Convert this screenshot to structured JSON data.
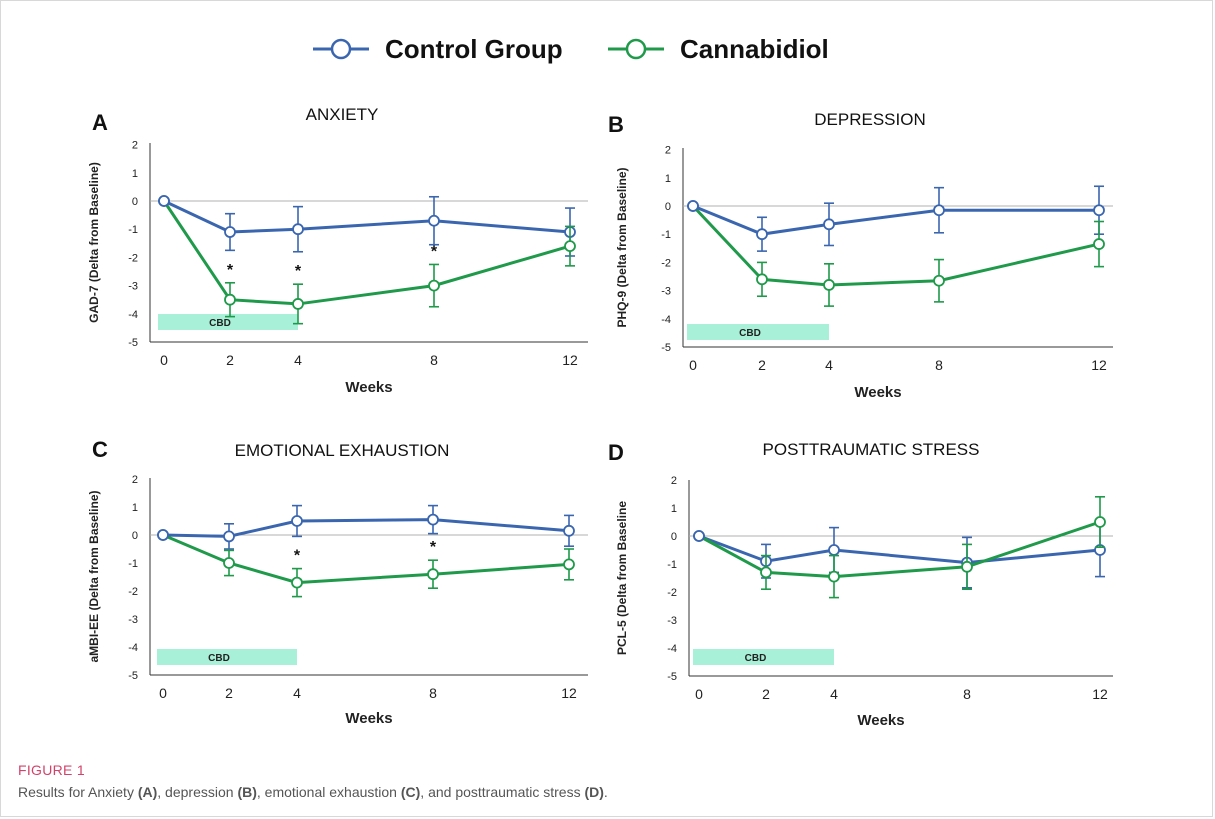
{
  "legend": {
    "entries": [
      {
        "name": "Control Group",
        "color": "#3a66b0"
      },
      {
        "name": "Cannabidiol",
        "color": "#1f9a4a"
      }
    ]
  },
  "caption": {
    "figure_label": "FIGURE 1",
    "parts": [
      {
        "text": "Results for Anxiety ",
        "bold": false
      },
      {
        "text": "(A)",
        "bold": true
      },
      {
        "text": ", depression ",
        "bold": false
      },
      {
        "text": "(B)",
        "bold": true
      },
      {
        "text": ", emotional exhaustion ",
        "bold": false
      },
      {
        "text": "(C)",
        "bold": true
      },
      {
        "text": ", and posttraumatic stress ",
        "bold": false
      },
      {
        "text": "(D)",
        "bold": true
      },
      {
        "text": ".",
        "bold": false
      }
    ]
  },
  "colors": {
    "control": "#3a66b0",
    "cbd": "#1f9a4a",
    "cbd_bar": "#a8f0d8",
    "zero_line": "#b0b0b0",
    "axis": "#333333"
  },
  "chart_data": [
    {
      "panel": "A",
      "type": "line",
      "title": "ANXIETY",
      "xlabel": "Weeks",
      "ylabel": "GAD-7 (Delta from Baseline)",
      "x": [
        0,
        2,
        4,
        8,
        12
      ],
      "xticks": [
        "0",
        "2",
        "4",
        "8",
        "12"
      ],
      "ylim": [
        -5,
        2
      ],
      "yticks": [
        "2",
        "1",
        "0",
        "-1",
        "-2",
        "-3",
        "-4",
        "-5"
      ],
      "bar_label": "CBD",
      "bar_range": [
        0,
        4
      ],
      "series": [
        {
          "name": "Control Group",
          "values": [
            0,
            -1.1,
            -1.0,
            -0.7,
            -1.1
          ],
          "errors": [
            0,
            0.65,
            0.8,
            0.85,
            0.85
          ]
        },
        {
          "name": "Cannabidiol",
          "values": [
            0,
            -3.5,
            -3.65,
            -3.0,
            -1.6
          ],
          "errors": [
            0,
            0.6,
            0.7,
            0.75,
            0.7
          ]
        }
      ],
      "significance": [
        {
          "x": 2,
          "label": "*"
        },
        {
          "x": 4,
          "label": "*"
        },
        {
          "x": 8,
          "label": "*"
        }
      ]
    },
    {
      "panel": "B",
      "type": "line",
      "title": "DEPRESSION",
      "xlabel": "Weeks",
      "ylabel": "PHQ-9 (Delta from Baseline)",
      "x": [
        0,
        2,
        4,
        8,
        12
      ],
      "xticks": [
        "0",
        "2",
        "4",
        "8",
        "12"
      ],
      "ylim": [
        -5,
        2
      ],
      "yticks": [
        "2",
        "1",
        "0",
        "-1",
        "-2",
        "-3",
        "-4",
        "-5"
      ],
      "bar_label": "CBD",
      "bar_range": [
        0,
        4
      ],
      "series": [
        {
          "name": "Control Group",
          "values": [
            0,
            -1.0,
            -0.65,
            -0.15,
            -0.15
          ],
          "errors": [
            0,
            0.6,
            0.75,
            0.8,
            0.85
          ]
        },
        {
          "name": "Cannabidiol",
          "values": [
            0,
            -2.6,
            -2.8,
            -2.65,
            -1.35
          ],
          "errors": [
            0,
            0.6,
            0.75,
            0.75,
            0.8
          ]
        }
      ],
      "significance": []
    },
    {
      "panel": "C",
      "type": "line",
      "title": "EMOTIONAL EXHAUSTION",
      "xlabel": "Weeks",
      "ylabel": "aMBI-EE (Delta from Baseline)",
      "x": [
        0,
        2,
        4,
        8,
        12
      ],
      "xticks": [
        "0",
        "2",
        "4",
        "8",
        "12"
      ],
      "ylim": [
        -5,
        2
      ],
      "yticks": [
        "2",
        "1",
        "0",
        "-1",
        "-2",
        "-3",
        "-4",
        "-5"
      ],
      "bar_label": "CBD",
      "bar_range": [
        0,
        4
      ],
      "series": [
        {
          "name": "Control Group",
          "values": [
            0,
            -0.05,
            0.5,
            0.55,
            0.15
          ],
          "errors": [
            0,
            0.45,
            0.55,
            0.5,
            0.55
          ]
        },
        {
          "name": "Cannabidiol",
          "values": [
            0,
            -1.0,
            -1.7,
            -1.4,
            -1.05
          ],
          "errors": [
            0,
            0.45,
            0.5,
            0.5,
            0.55
          ]
        }
      ],
      "significance": [
        {
          "x": 4,
          "label": "*"
        },
        {
          "x": 8,
          "label": "*"
        }
      ]
    },
    {
      "panel": "D",
      "type": "line",
      "title": "POSTTRAUMATIC STRESS",
      "xlabel": "Weeks",
      "ylabel": "PCL-5 (Delta from Baseline",
      "x": [
        0,
        2,
        4,
        8,
        12
      ],
      "xticks": [
        "0",
        "2",
        "4",
        "8",
        "12"
      ],
      "ylim": [
        -5,
        2
      ],
      "yticks": [
        "2",
        "1",
        "0",
        "-1",
        "-2",
        "-3",
        "-4",
        "-5"
      ],
      "bar_label": "CBD",
      "bar_range": [
        0,
        4
      ],
      "series": [
        {
          "name": "Control Group",
          "values": [
            0,
            -0.9,
            -0.5,
            -0.95,
            -0.5
          ],
          "errors": [
            0,
            0.6,
            0.8,
            0.9,
            0.95
          ]
        },
        {
          "name": "Cannabidiol",
          "values": [
            0,
            -1.3,
            -1.45,
            -1.1,
            0.5
          ],
          "errors": [
            0,
            0.6,
            0.75,
            0.8,
            0.9
          ]
        }
      ],
      "significance": []
    }
  ]
}
